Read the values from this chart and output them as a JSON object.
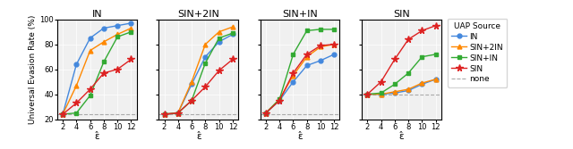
{
  "subplots": [
    "IN",
    "SIN+2IN",
    "SIN+IN",
    "SIN"
  ],
  "epsilon": [
    2,
    4,
    6,
    8,
    10,
    12
  ],
  "none_line": {
    "IN": 24,
    "SIN+2IN": 24,
    "SIN+IN": 24,
    "SIN": 40
  },
  "series": {
    "IN": {
      "IN": [
        24,
        64,
        85,
        93,
        95,
        97
      ],
      "SIN+2IN": [
        24,
        47,
        75,
        82,
        88,
        93
      ],
      "SIN+IN": [
        24,
        25,
        39,
        66,
        86,
        90
      ],
      "SIN": [
        24,
        33,
        44,
        57,
        60,
        68
      ]
    },
    "SIN+2IN": {
      "IN": [
        24,
        25,
        48,
        70,
        82,
        88
      ],
      "SIN+2IN": [
        24,
        25,
        50,
        80,
        90,
        94
      ],
      "SIN+IN": [
        24,
        25,
        35,
        65,
        85,
        89
      ],
      "SIN": [
        24,
        25,
        35,
        46,
        59,
        68
      ]
    },
    "SIN+IN": {
      "IN": [
        25,
        35,
        50,
        63,
        67,
        72
      ],
      "SIN+2IN": [
        25,
        36,
        55,
        70,
        78,
        80
      ],
      "SIN+IN": [
        25,
        36,
        72,
        91,
        92,
        92
      ],
      "SIN": [
        25,
        35,
        57,
        72,
        79,
        80
      ]
    },
    "SIN": {
      "IN": [
        40,
        40,
        41,
        43,
        48,
        52
      ],
      "SIN+2IN": [
        40,
        40,
        42,
        44,
        49,
        52
      ],
      "SIN+IN": [
        40,
        41,
        48,
        57,
        70,
        72
      ],
      "SIN": [
        40,
        50,
        68,
        84,
        91,
        95
      ]
    }
  },
  "colors": {
    "IN": "#4488dd",
    "SIN+2IN": "#ff8800",
    "SIN+IN": "#33aa33",
    "SIN": "#dd2222"
  },
  "markers": {
    "IN": "o",
    "SIN+2IN": "^",
    "SIN+IN": "s",
    "SIN": "*"
  },
  "marker_sizes": {
    "IN": 3.5,
    "SIN+2IN": 3.5,
    "SIN+IN": 3.5,
    "SIN": 5.5
  },
  "ylim": [
    20,
    100
  ],
  "yticks": [
    20,
    40,
    60,
    80,
    100
  ],
  "ylabel": "Universal Evasion Rate (%)",
  "xlabel": "ε̂",
  "none_color": "#aaaaaa",
  "bg_color": "#f0f0f0",
  "title_fontsize": 8,
  "label_fontsize": 6.5,
  "tick_fontsize": 6,
  "legend_fontsize": 6.5,
  "linewidth": 1.0
}
